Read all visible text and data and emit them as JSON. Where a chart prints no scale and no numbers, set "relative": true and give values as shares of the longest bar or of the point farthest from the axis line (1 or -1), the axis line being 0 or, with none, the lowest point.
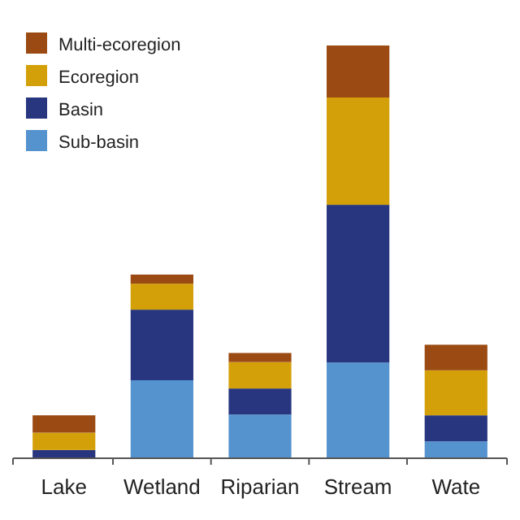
{
  "chart_data": {
    "type": "bar",
    "stacked": true,
    "relative": true,
    "legend": "top left",
    "categories": [
      "Lake",
      "Wetland",
      "Riparian",
      "Stream",
      "Wate"
    ],
    "series": [
      {
        "name": "Sub-basin",
        "color": "#5593cf",
        "values": [
          0,
          0.189,
          0.106,
          0.232,
          0.041
        ]
      },
      {
        "name": "Basin",
        "color": "#27367f",
        "values": [
          0.02,
          0.171,
          0.063,
          0.382,
          0.063
        ]
      },
      {
        "name": "Ecoregion",
        "color": "#d4a00a",
        "values": [
          0.042,
          0.063,
          0.064,
          0.26,
          0.109
        ]
      },
      {
        "name": "Multi-ecoregion",
        "color": "#9a4a12",
        "values": [
          0.042,
          0.022,
          0.022,
          0.126,
          0.062
        ]
      }
    ]
  }
}
